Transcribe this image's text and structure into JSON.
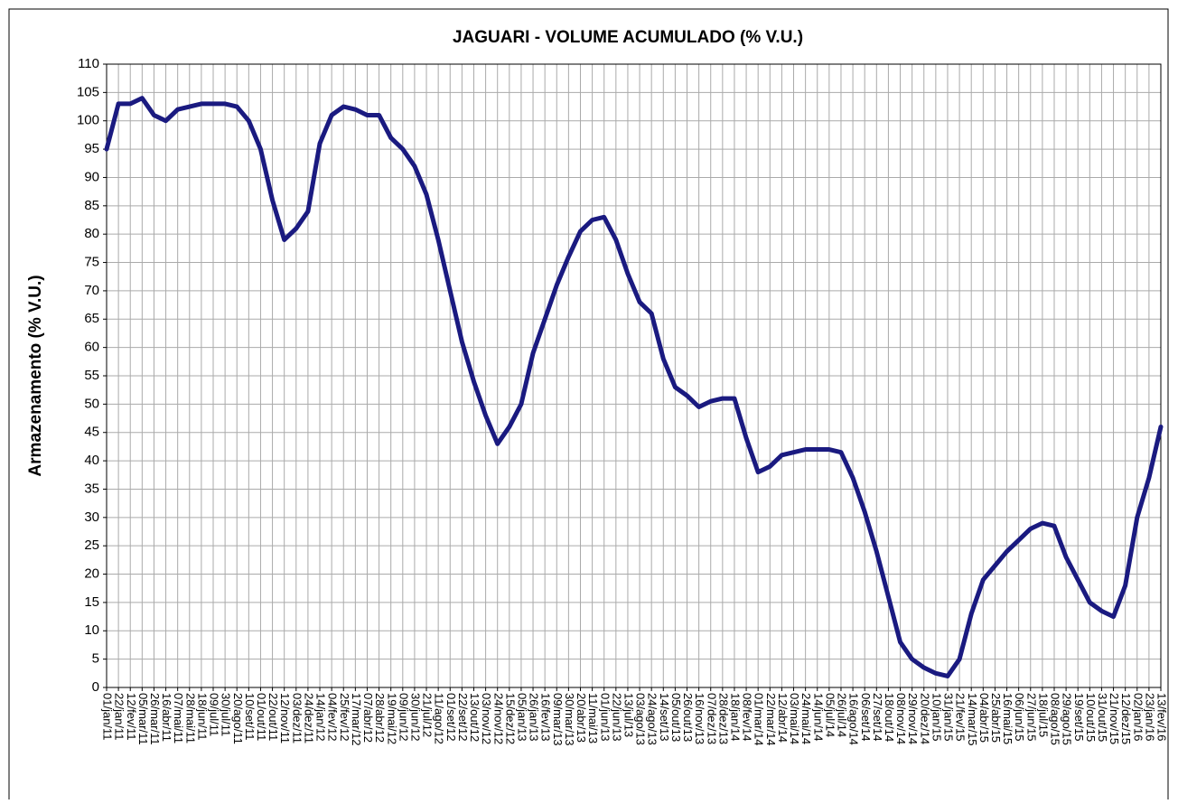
{
  "chart_data": {
    "type": "line",
    "title": "JAGUARI - VOLUME ACUMULADO (% V.U.)",
    "y_label": "Armazenamento (% V.U.)",
    "categories": [
      "01/jan/11",
      "22/jan/11",
      "12/fev/11",
      "05/mar/11",
      "26/mar/11",
      "16/abr/11",
      "07/mai/11",
      "28/mai/11",
      "18/jun/11",
      "09/jul/11",
      "30/jul/11",
      "20/ago/11",
      "10/set/11",
      "01/out/11",
      "22/out/11",
      "12/nov/11",
      "03/dez/11",
      "24/dez/11",
      "14/jan/12",
      "04/fev/12",
      "25/fev/12",
      "17/mar/12",
      "07/abr/12",
      "28/abr/12",
      "19/mai/12",
      "09/jun/12",
      "30/jun/12",
      "21/jul/12",
      "11/ago/12",
      "01/set/12",
      "22/set/12",
      "13/out/12",
      "03/nov/12",
      "24/nov/12",
      "15/dez/12",
      "05/jan/13",
      "26/jan/13",
      "16/fev/13",
      "09/mar/13",
      "30/mar/13",
      "20/abr/13",
      "11/mai/13",
      "01/jun/13",
      "22/jun/13",
      "13/jul/13",
      "03/ago/13",
      "24/ago/13",
      "14/set/13",
      "05/out/13",
      "26/out/13",
      "16/nov/13",
      "07/dez/13",
      "28/dez/13",
      "18/jan/14",
      "08/fev/14",
      "01/mar/14",
      "22/mar/14",
      "12/abr/14",
      "03/mai/14",
      "24/mai/14",
      "14/jun/14",
      "05/jul/14",
      "26/jul/14",
      "16/ago/14",
      "06/set/14",
      "27/set/14",
      "18/out/14",
      "08/nov/14",
      "29/nov/14",
      "20/dez/14",
      "10/jan/15",
      "31/jan/15",
      "21/fev/15",
      "14/mar/15",
      "04/abr/15",
      "25/abr/15",
      "16/mai/15",
      "06/jun/15",
      "27/jun/15",
      "18/jul/15",
      "08/ago/15",
      "29/ago/15",
      "19/set/15",
      "10/out/15",
      "31/out/15",
      "21/nov/15",
      "12/dez/15",
      "02/jan/16",
      "23/jan/16",
      "13/fev/16"
    ],
    "series": [
      {
        "name": "Jaguari",
        "color": "#1a1a80",
        "values": [
          95,
          103,
          103,
          104,
          101,
          100,
          102,
          102.5,
          103,
          103,
          103,
          102.5,
          100,
          95,
          86,
          79,
          81,
          84,
          96,
          101,
          102.5,
          102,
          101,
          101,
          97,
          95,
          92,
          87,
          79,
          70,
          61,
          54,
          48,
          43,
          46,
          50,
          59,
          65,
          71,
          76,
          80.5,
          82.5,
          83,
          79,
          73,
          68,
          66,
          58,
          53,
          51.5,
          49.5,
          50.5,
          51,
          51,
          44,
          38,
          39,
          41,
          41.5,
          42,
          42,
          42,
          41.5,
          37,
          31,
          24,
          16,
          8,
          5,
          3.5,
          2.5,
          2,
          5,
          13,
          19,
          21.5,
          24,
          26,
          28,
          29,
          28.5,
          23,
          19,
          15,
          13.5,
          12.5,
          18,
          30,
          37,
          46
        ]
      }
    ],
    "ylim": [
      0,
      110
    ],
    "yticks": [
      0,
      5,
      10,
      15,
      20,
      25,
      30,
      35,
      40,
      45,
      50,
      55,
      60,
      65,
      70,
      75,
      80,
      85,
      90,
      95,
      100,
      105,
      110
    ],
    "grid": true
  }
}
